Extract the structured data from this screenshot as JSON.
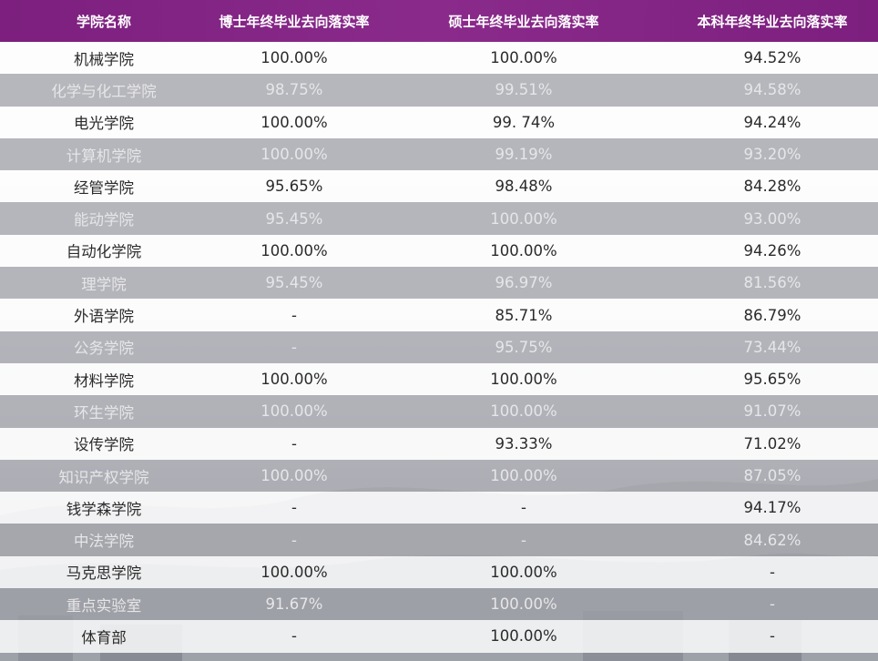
{
  "table": {
    "headers": [
      "学院名称",
      "博士年终毕业去向落实率",
      "硕士年终毕业去向落实率",
      "本科年终毕业去向落实率"
    ],
    "rows": [
      [
        "机械学院",
        "100.00%",
        "100.00%",
        "94.52%"
      ],
      [
        "化学与化工学院",
        "98.75%",
        "99.51%",
        "94.58%"
      ],
      [
        "电光学院",
        "100.00%",
        "99. 74%",
        "94.24%"
      ],
      [
        "计算机学院",
        "100.00%",
        "99.19%",
        "93.20%"
      ],
      [
        "经管学院",
        "95.65%",
        "98.48%",
        "84.28%"
      ],
      [
        "能动学院",
        "95.45%",
        "100.00%",
        "93.00%"
      ],
      [
        "自动化学院",
        "100.00%",
        "100.00%",
        "94.26%"
      ],
      [
        "理学院",
        "95.45%",
        "96.97%",
        "81.56%"
      ],
      [
        "外语学院",
        "-",
        "85.71%",
        "86.79%"
      ],
      [
        "公务学院",
        "-",
        "95.75%",
        "73.44%"
      ],
      [
        "材料学院",
        "100.00%",
        "100.00%",
        "95.65%"
      ],
      [
        "环生学院",
        "100.00%",
        "100.00%",
        "91.07%"
      ],
      [
        "设传学院",
        "-",
        "93.33%",
        "71.02%"
      ],
      [
        "知识产权学院",
        "100.00%",
        "100.00%",
        "87.05%"
      ],
      [
        "钱学森学院",
        "-",
        "-",
        "94.17%"
      ],
      [
        "中法学院",
        "-",
        "-",
        "84.62%"
      ],
      [
        "马克思学院",
        "100.00%",
        "100.00%",
        "-"
      ],
      [
        "重点实验室",
        "91.67%",
        "100.00%",
        "-"
      ],
      [
        "体育部",
        "-",
        "100.00%",
        "-"
      ]
    ]
  },
  "colors": {
    "header_bg": "#7c1f7e",
    "header_text": "#ffffff",
    "odd_row_text": "#2b2b2b",
    "even_row_bg": "#9ea0a6",
    "even_row_text": "#e6e6e8"
  }
}
